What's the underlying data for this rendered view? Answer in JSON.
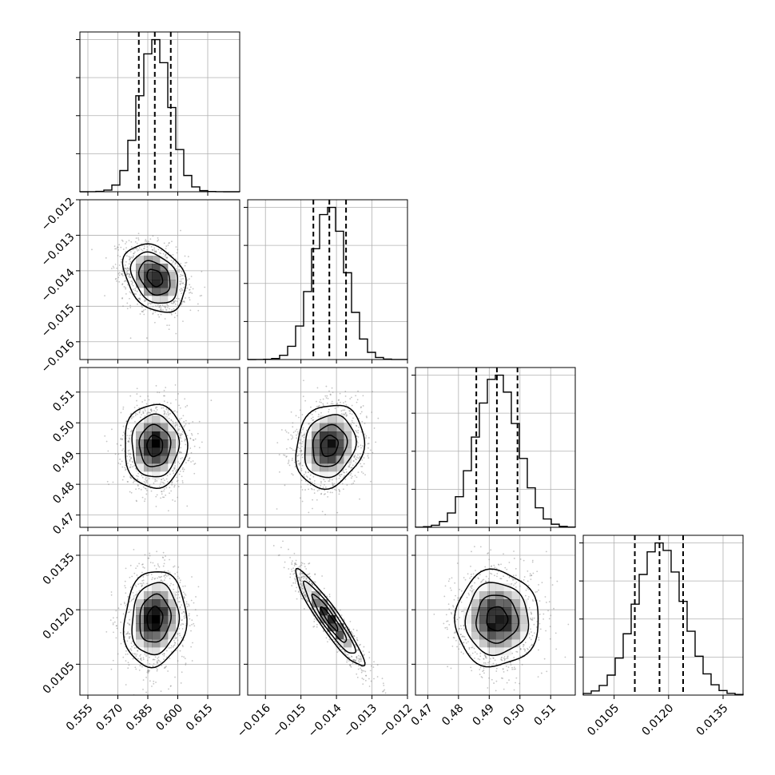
{
  "chart_data": {
    "type": "corner",
    "title": "",
    "n_params": 4,
    "params": [
      {
        "label": "",
        "range": [
          0.551,
          0.631
        ],
        "ticks": [
          0.555,
          0.57,
          0.585,
          0.6,
          0.615
        ],
        "tick_labels": [
          "0.555",
          "0.570",
          "0.585",
          "0.600",
          "0.615"
        ],
        "quantiles": [
          0.5805,
          0.5885,
          0.5965
        ],
        "mean": 0.5885,
        "sd": 0.0078,
        "hist_peak_bin": [
          0.586,
          0.5895
        ]
      },
      {
        "label": "",
        "range": [
          -0.0165,
          -0.012
        ],
        "ticks": [
          -0.016,
          -0.015,
          -0.014,
          -0.013,
          -0.012
        ],
        "tick_labels": [
          "−0.016",
          "−0.015",
          "−0.014",
          "−0.013",
          "−0.012"
        ],
        "quantiles": [
          -0.01465,
          -0.0142,
          -0.01373
        ],
        "mean": -0.0142,
        "sd": 0.00048,
        "hist_peak_bin": [
          -0.01435,
          -0.0141
        ]
      },
      {
        "label": "",
        "range": [
          0.466,
          0.518
        ],
        "ticks": [
          0.47,
          0.48,
          0.49,
          0.5,
          0.51
        ],
        "tick_labels": [
          "0.47",
          "0.48",
          "0.49",
          "0.50",
          "0.51"
        ],
        "quantiles": [
          0.4858,
          0.4925,
          0.4992
        ],
        "mean": 0.4925,
        "sd": 0.0068,
        "hist_peak_bin": [
          0.4918,
          0.4945
        ]
      },
      {
        "label": "",
        "range": [
          0.00965,
          0.01405
        ],
        "ticks": [
          0.0105,
          0.012,
          0.0135
        ],
        "tick_labels": [
          "0.0105",
          "0.0120",
          "0.0135"
        ],
        "quantiles": [
          0.01107,
          0.01175,
          0.0124
        ],
        "mean": 0.01175,
        "sd": 0.00066,
        "hist_peak_bin": [
          0.0118,
          0.012
        ]
      }
    ],
    "correlations": [
      {
        "pair": [
          0,
          1
        ],
        "r": -0.3
      },
      {
        "pair": [
          0,
          2
        ],
        "r": 0.0
      },
      {
        "pair": [
          1,
          2
        ],
        "r": 0.15
      },
      {
        "pair": [
          0,
          3
        ],
        "r": 0.1
      },
      {
        "pair": [
          1,
          3
        ],
        "r": -0.93
      },
      {
        "pair": [
          2,
          3
        ],
        "r": 0.0
      }
    ],
    "contour_levels_sigma": [
      0.5,
      1.0,
      1.5,
      2.0
    ],
    "quantile_line_style": "dashed",
    "grid": true,
    "colors": {
      "line": "#000000",
      "scatter": "#7f7f7f",
      "grid": "#b0b0b0",
      "density": "#000000"
    }
  }
}
